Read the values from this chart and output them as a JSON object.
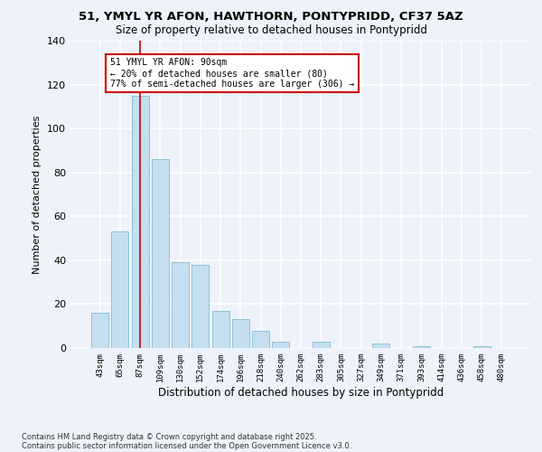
{
  "title1": "51, YMYL YR AFON, HAWTHORN, PONTYPRIDD, CF37 5AZ",
  "title2": "Size of property relative to detached houses in Pontypridd",
  "xlabel": "Distribution of detached houses by size in Pontypridd",
  "ylabel": "Number of detached properties",
  "bar_color": "#c5dff0",
  "bar_edge_color": "#7fbcd2",
  "background_color": "#eef2fa",
  "grid_color": "#ffffff",
  "categories": [
    "43sqm",
    "65sqm",
    "87sqm",
    "109sqm",
    "130sqm",
    "152sqm",
    "174sqm",
    "196sqm",
    "218sqm",
    "240sqm",
    "262sqm",
    "283sqm",
    "305sqm",
    "327sqm",
    "349sqm",
    "371sqm",
    "393sqm",
    "414sqm",
    "436sqm",
    "458sqm",
    "480sqm"
  ],
  "values": [
    16,
    53,
    115,
    86,
    39,
    38,
    17,
    13,
    8,
    3,
    0,
    3,
    0,
    0,
    2,
    0,
    1,
    0,
    0,
    1,
    0
  ],
  "ylim": [
    0,
    140
  ],
  "yticks": [
    0,
    20,
    40,
    60,
    80,
    100,
    120,
    140
  ],
  "vline_index": 2,
  "vline_color": "#cc0000",
  "annotation_title": "51 YMYL YR AFON: 90sqm",
  "annotation_line1": "← 20% of detached houses are smaller (80)",
  "annotation_line2": "77% of semi-detached houses are larger (306) →",
  "annotation_box_color": "#ffffff",
  "annotation_box_edge": "#cc0000",
  "footnote1": "Contains HM Land Registry data © Crown copyright and database right 2025.",
  "footnote2": "Contains public sector information licensed under the Open Government Licence v3.0."
}
